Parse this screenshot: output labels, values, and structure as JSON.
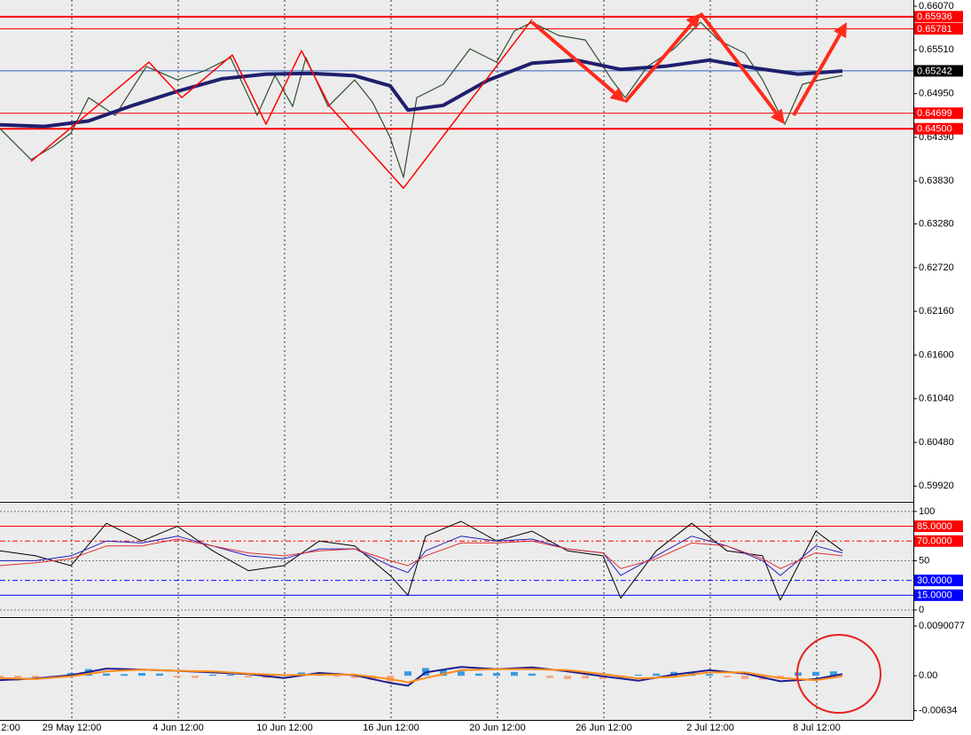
{
  "chart_data": [
    {
      "type": "line",
      "xlim": [
        0,
        103
      ],
      "xticks": [
        {
          "value": -3.9,
          "label": "2:00"
        },
        {
          "value": 8.1,
          "label": "29 May 12:00"
        },
        {
          "value": 20.1,
          "label": "4 Jun 12:00"
        },
        {
          "value": 32.1,
          "label": "10 Jun 12:00"
        },
        {
          "value": 44.1,
          "label": "16 Jun 12:00"
        },
        {
          "value": 56.1,
          "label": "20 Jun 12:00"
        },
        {
          "value": 68.1,
          "label": "26 Jun 12:00"
        },
        {
          "value": 80.1,
          "label": "2 Jul 12:00"
        },
        {
          "value": 92.1,
          "label": "8 Jul 12:00"
        }
      ],
      "ylim": [
        0.5973,
        0.6615
      ],
      "yticks": [
        {
          "value": 0.6607,
          "label": "0.66070"
        },
        {
          "value": 0.6551,
          "label": "0.65510"
        },
        {
          "value": 0.6495,
          "label": "0.64950"
        },
        {
          "value": 0.6439,
          "label": "0.64390"
        },
        {
          "value": 0.6383,
          "label": "0.63830"
        },
        {
          "value": 0.6328,
          "label": "0.63280"
        },
        {
          "value": 0.6272,
          "label": "0.62720"
        },
        {
          "value": 0.6216,
          "label": "0.62160"
        },
        {
          "value": 0.616,
          "label": "0.61600"
        },
        {
          "value": 0.6104,
          "label": "0.61040"
        },
        {
          "value": 0.6048,
          "label": "0.60480"
        },
        {
          "value": 0.5992,
          "label": "0.59920"
        }
      ],
      "series": [
        {
          "color": "#2f4f2f",
          "width": 1.2,
          "x": [
            0,
            3.5,
            6,
            8,
            10,
            13,
            16.5,
            20,
            23,
            26,
            29,
            31,
            33,
            34.5,
            37,
            40,
            42,
            44,
            45.5,
            47,
            50,
            53,
            56,
            58,
            60,
            63,
            66,
            69,
            70.5,
            73,
            76,
            79,
            81,
            84,
            86,
            88.5,
            90.5,
            92.5,
            95
          ],
          "values": [
            0.64501,
            0.64103,
            0.64274,
            0.64444,
            0.64899,
            0.64672,
            0.65297,
            0.65126,
            0.6524,
            0.65411,
            0.64672,
            0.65183,
            0.64785,
            0.65411,
            0.64785,
            0.65126,
            0.64842,
            0.64387,
            0.63876,
            0.64899,
            0.6507,
            0.65524,
            0.65354,
            0.65752,
            0.65865,
            0.65695,
            0.65638,
            0.65126,
            0.64899,
            0.65297,
            0.65524,
            0.65865,
            0.65638,
            0.65467,
            0.65126,
            0.64558,
            0.6507,
            0.65126,
            0.65183
          ]
        },
        {
          "color": "#1f1f6e",
          "width": 4,
          "x": [
            0,
            5,
            10,
            15,
            20,
            25,
            30,
            35,
            40,
            44,
            46,
            50,
            55,
            60,
            65,
            70,
            75,
            80,
            85,
            90,
            95
          ],
          "values": [
            0.6455,
            0.6453,
            0.646,
            0.648,
            0.6498,
            0.6514,
            0.652,
            0.6521,
            0.6518,
            0.6505,
            0.6474,
            0.648,
            0.6512,
            0.6534,
            0.6538,
            0.6526,
            0.653,
            0.6538,
            0.6528,
            0.652,
            0.6524
          ]
        },
        {
          "color": "#ff0000",
          "width": 1.5,
          "x": [
            3.5,
            16.8,
            20.5,
            26.2,
            30,
            34,
            37.2,
            45.5,
            60
          ],
          "values": [
            0.64081,
            0.65354,
            0.64899,
            0.65445,
            0.64558,
            0.65501,
            0.64785,
            0.63739,
            0.65899
          ]
        }
      ],
      "arrows": [
        {
          "color": "#ff2a1a",
          "x": [
            60,
            70.5
          ],
          "values": [
            0.65865,
            0.64842
          ]
        },
        {
          "color": "#ff2a1a",
          "x": [
            70.5,
            79
          ],
          "values": [
            0.64842,
            0.65979
          ]
        },
        {
          "color": "#ff2a1a",
          "x": [
            79,
            88.5
          ],
          "values": [
            0.65979,
            0.64558
          ]
        },
        {
          "color": "#ff2a1a",
          "x": [
            89.5,
            95.5
          ],
          "values": [
            0.64672,
            0.65865
          ]
        }
      ],
      "levels": {
        "values": [
          0.65936,
          0.65781,
          0.65242,
          0.64699,
          0.645
        ],
        "value_labels": [
          "0.65936",
          "0.65781",
          "0.65242",
          "0.64699",
          "0.64500"
        ],
        "colors": [
          "#ff0000",
          "#ff0000",
          "#000000",
          "#ff0000",
          "#ff0000"
        ]
      }
    },
    {
      "type": "line",
      "ylim": [
        -6.3,
        108
      ],
      "yticks": [
        100,
        50,
        0
      ],
      "series": [
        {
          "color": "#000000",
          "width": 1,
          "x": [
            0,
            4,
            8,
            12,
            16,
            20,
            24,
            28,
            32,
            36,
            40,
            44,
            46,
            48,
            52,
            56,
            60,
            64,
            68,
            70,
            74,
            78,
            82,
            86,
            88,
            92,
            95
          ],
          "values": [
            60,
            55,
            45,
            88,
            70,
            85,
            60,
            40,
            45,
            70,
            65,
            35,
            15,
            75,
            90,
            70,
            80,
            60,
            55,
            12,
            60,
            88,
            60,
            55,
            10,
            80,
            60
          ]
        },
        {
          "color": "#2020c0",
          "width": 1,
          "x": [
            0,
            4,
            8,
            12,
            16,
            20,
            24,
            28,
            32,
            36,
            40,
            44,
            46,
            48,
            52,
            56,
            60,
            64,
            68,
            70,
            74,
            78,
            82,
            86,
            88,
            92,
            95
          ],
          "values": [
            50,
            50,
            55,
            70,
            68,
            75,
            65,
            55,
            52,
            62,
            62,
            45,
            38,
            60,
            75,
            70,
            72,
            62,
            58,
            35,
            55,
            75,
            65,
            50,
            35,
            65,
            58
          ]
        },
        {
          "color": "#e03030",
          "width": 1,
          "x": [
            0,
            4,
            8,
            12,
            16,
            20,
            24,
            28,
            32,
            36,
            40,
            44,
            46,
            48,
            52,
            56,
            60,
            64,
            68,
            70,
            74,
            78,
            82,
            86,
            88,
            92,
            95
          ],
          "values": [
            45,
            48,
            52,
            65,
            65,
            72,
            65,
            58,
            55,
            60,
            62,
            50,
            45,
            55,
            68,
            68,
            70,
            62,
            58,
            42,
            52,
            68,
            65,
            52,
            42,
            58,
            55
          ]
        }
      ],
      "levels": {
        "values": [
          85,
          70,
          30,
          15
        ],
        "value_labels": [
          "85.0000",
          "70.0000",
          "30.0000",
          "15.0000"
        ],
        "colors": [
          "#ff0000",
          "#ff0000",
          "#0000ff",
          "#0000ff"
        ]
      }
    },
    {
      "type": "bar",
      "ylim": [
        -0.008,
        0.0103
      ],
      "yticks": [
        0.0090077,
        {
          "value": 0,
          "label": "0.00"
        },
        -0.00634
      ],
      "bars": {
        "up_color": "#3a9be0",
        "down_color": "#f4a582",
        "x": [
          0,
          2,
          4,
          6,
          8,
          10,
          12,
          14,
          16,
          18,
          20,
          22,
          24,
          26,
          28,
          30,
          32,
          34,
          36,
          38,
          40,
          42,
          44,
          46,
          48,
          50,
          52,
          54,
          56,
          58,
          60,
          62,
          64,
          66,
          68,
          70,
          72,
          74,
          76,
          78,
          80,
          82,
          84,
          86,
          88,
          90,
          92,
          94
        ],
        "values": [
          -0.0006,
          -0.0009,
          -0.0007,
          -0.0003,
          0.0005,
          0.0012,
          0.0004,
          0.0003,
          0.0005,
          0.0004,
          -0.0003,
          -0.0004,
          0.0002,
          0.0002,
          -0.0003,
          -0.0004,
          0.0002,
          0.0006,
          0.0003,
          -0.0002,
          -0.0004,
          -0.0008,
          -0.0011,
          0.0008,
          0.0014,
          0.001,
          0.0008,
          0.0004,
          0.0005,
          0.0007,
          0.0004,
          -0.0004,
          -0.0006,
          -0.0005,
          -0.0006,
          -0.0005,
          0.0002,
          0.0004,
          0.0007,
          0.0006,
          0.0003,
          -0.0003,
          -0.0006,
          -0.0007,
          -0.0005,
          0.0006,
          0.0007,
          0.0008
        ]
      },
      "series": [
        {
          "color": "#1f1f8e",
          "width": 2,
          "x": [
            0,
            4,
            8,
            12,
            16,
            20,
            24,
            28,
            32,
            36,
            40,
            44,
            46,
            48,
            52,
            56,
            60,
            64,
            68,
            72,
            76,
            80,
            84,
            88,
            92,
            95
          ],
          "values": [
            -0.0008,
            -0.0005,
            0.0001,
            0.0013,
            0.0011,
            0.0009,
            0.0006,
            0.0003,
            -0.0004,
            0.0005,
            0.0001,
            -0.0013,
            -0.0018,
            0.0006,
            0.0016,
            0.0012,
            0.0015,
            0.0008,
            -0.0001,
            -0.0009,
            0.0002,
            0.001,
            0.0004,
            -0.001,
            -0.0006,
            0.0003
          ]
        },
        {
          "color": "#ff8c1a",
          "width": 2,
          "x": [
            0,
            4,
            8,
            12,
            16,
            20,
            24,
            28,
            32,
            36,
            40,
            44,
            46,
            48,
            52,
            56,
            60,
            64,
            68,
            72,
            76,
            80,
            84,
            88,
            92,
            95
          ],
          "values": [
            -0.0004,
            -0.0006,
            -0.0001,
            0.0008,
            0.0011,
            0.0009,
            0.0008,
            0.0004,
            0.0001,
            0.0002,
            0.0002,
            -0.0006,
            -0.0012,
            -0.0004,
            0.001,
            0.0012,
            0.0012,
            0.001,
            0.0003,
            -0.0005,
            -0.0002,
            0.0006,
            0.0006,
            -0.0004,
            -0.0008,
            -0.0001
          ]
        }
      ]
    }
  ]
}
